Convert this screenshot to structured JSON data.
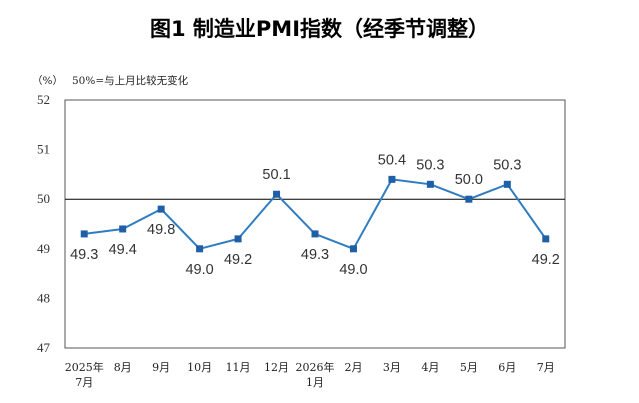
{
  "chart_data": {
    "type": "line",
    "title": "图1  制造业PMI指数（经季节调整）",
    "unit_label": "（%）",
    "note": "50%=与上月比较无变化",
    "categories": [
      [
        "2025年",
        "7月"
      ],
      [
        "8月"
      ],
      [
        "9月"
      ],
      [
        "10月"
      ],
      [
        "11月"
      ],
      [
        "12月"
      ],
      [
        "2026年",
        "1月"
      ],
      [
        "2月"
      ],
      [
        "3月"
      ],
      [
        "4月"
      ],
      [
        "5月"
      ],
      [
        "6月"
      ],
      [
        "7月"
      ]
    ],
    "series": [
      {
        "values": [
          49.3,
          49.4,
          49.8,
          49.0,
          49.2,
          50.1,
          49.3,
          49.0,
          50.4,
          50.3,
          50.0,
          50.3,
          49.2
        ]
      }
    ],
    "data_labels": [
      "49.3",
      "49.4",
      "49.8",
      "49.0",
      "49.2",
      "50.1",
      "49.3",
      "49.0",
      "50.4",
      "50.3",
      "50.0",
      "50.3",
      "49.2"
    ],
    "label_position": [
      "below",
      "below",
      "below",
      "below",
      "below",
      "above",
      "below",
      "below",
      "above",
      "above",
      "above",
      "above",
      "below"
    ],
    "ylim": [
      47,
      52
    ],
    "yticks": [
      47,
      48,
      49,
      50,
      51,
      52
    ],
    "reference_line": 50,
    "grid": false,
    "colors": {
      "line": "#2f7dc0",
      "marker": "#1f5fa8",
      "axis": "#555555",
      "reference": "#000000"
    }
  }
}
